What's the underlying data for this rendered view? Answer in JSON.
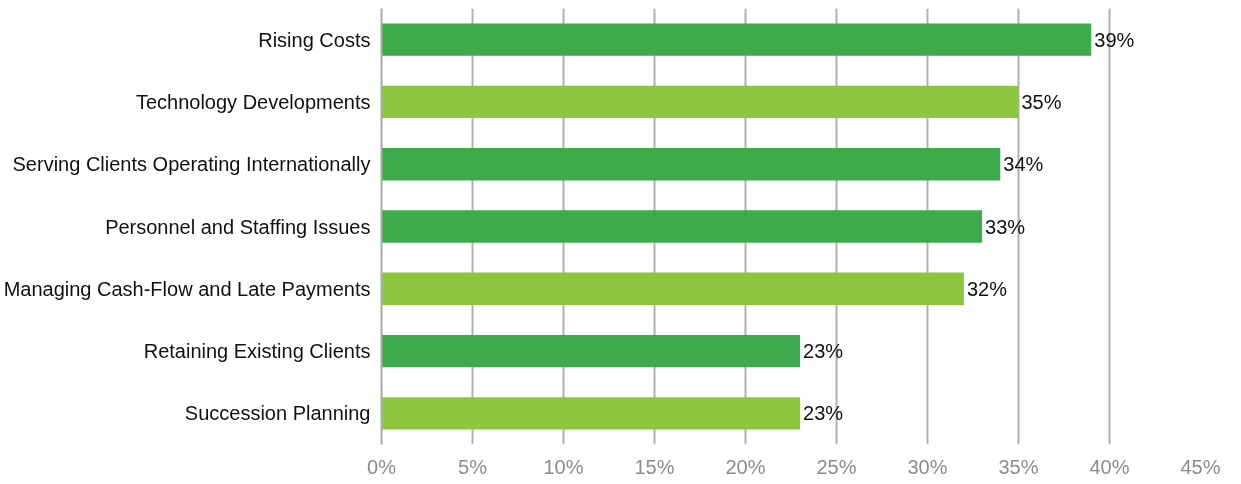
{
  "chart_data": {
    "type": "bar",
    "orientation": "horizontal",
    "categories": [
      "Rising Costs",
      "Technology Developments",
      "Serving Clients Operating Internationally",
      "Personnel and Staffing Issues",
      "Managing Cash-Flow and Late Payments",
      "Retaining Existing Clients",
      "Succession Planning"
    ],
    "values": [
      39,
      35,
      34,
      33,
      32,
      23,
      23
    ],
    "value_labels": [
      "39%",
      "35%",
      "34%",
      "33%",
      "32%",
      "23%",
      "23%"
    ],
    "colors": [
      "#3dab4b",
      "#8dc63f",
      "#3dab4b",
      "#3dab4b",
      "#8dc63f",
      "#3dab4b",
      "#8dc63f"
    ],
    "xlim": [
      0,
      45
    ],
    "xticks": [
      {
        "value": 0,
        "label": "0%"
      },
      {
        "value": 5,
        "label": "5%"
      },
      {
        "value": 10,
        "label": "10%"
      },
      {
        "value": 15,
        "label": "15%"
      },
      {
        "value": 20,
        "label": "20%"
      },
      {
        "value": 25,
        "label": "25%"
      },
      {
        "value": 30,
        "label": "30%"
      },
      {
        "value": 35,
        "label": "35%"
      },
      {
        "value": 40,
        "label": "40%"
      },
      {
        "value": 45,
        "label": "45%"
      }
    ],
    "grid": "x"
  }
}
